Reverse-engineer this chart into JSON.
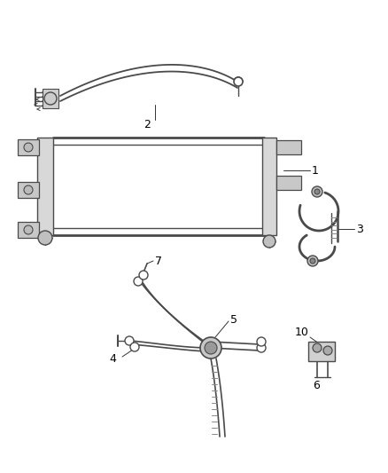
{
  "bg_color": "#ffffff",
  "line_color": "#4a4a4a",
  "label_color": "#000000",
  "fig_w": 4.38,
  "fig_h": 5.33,
  "dpi": 100
}
